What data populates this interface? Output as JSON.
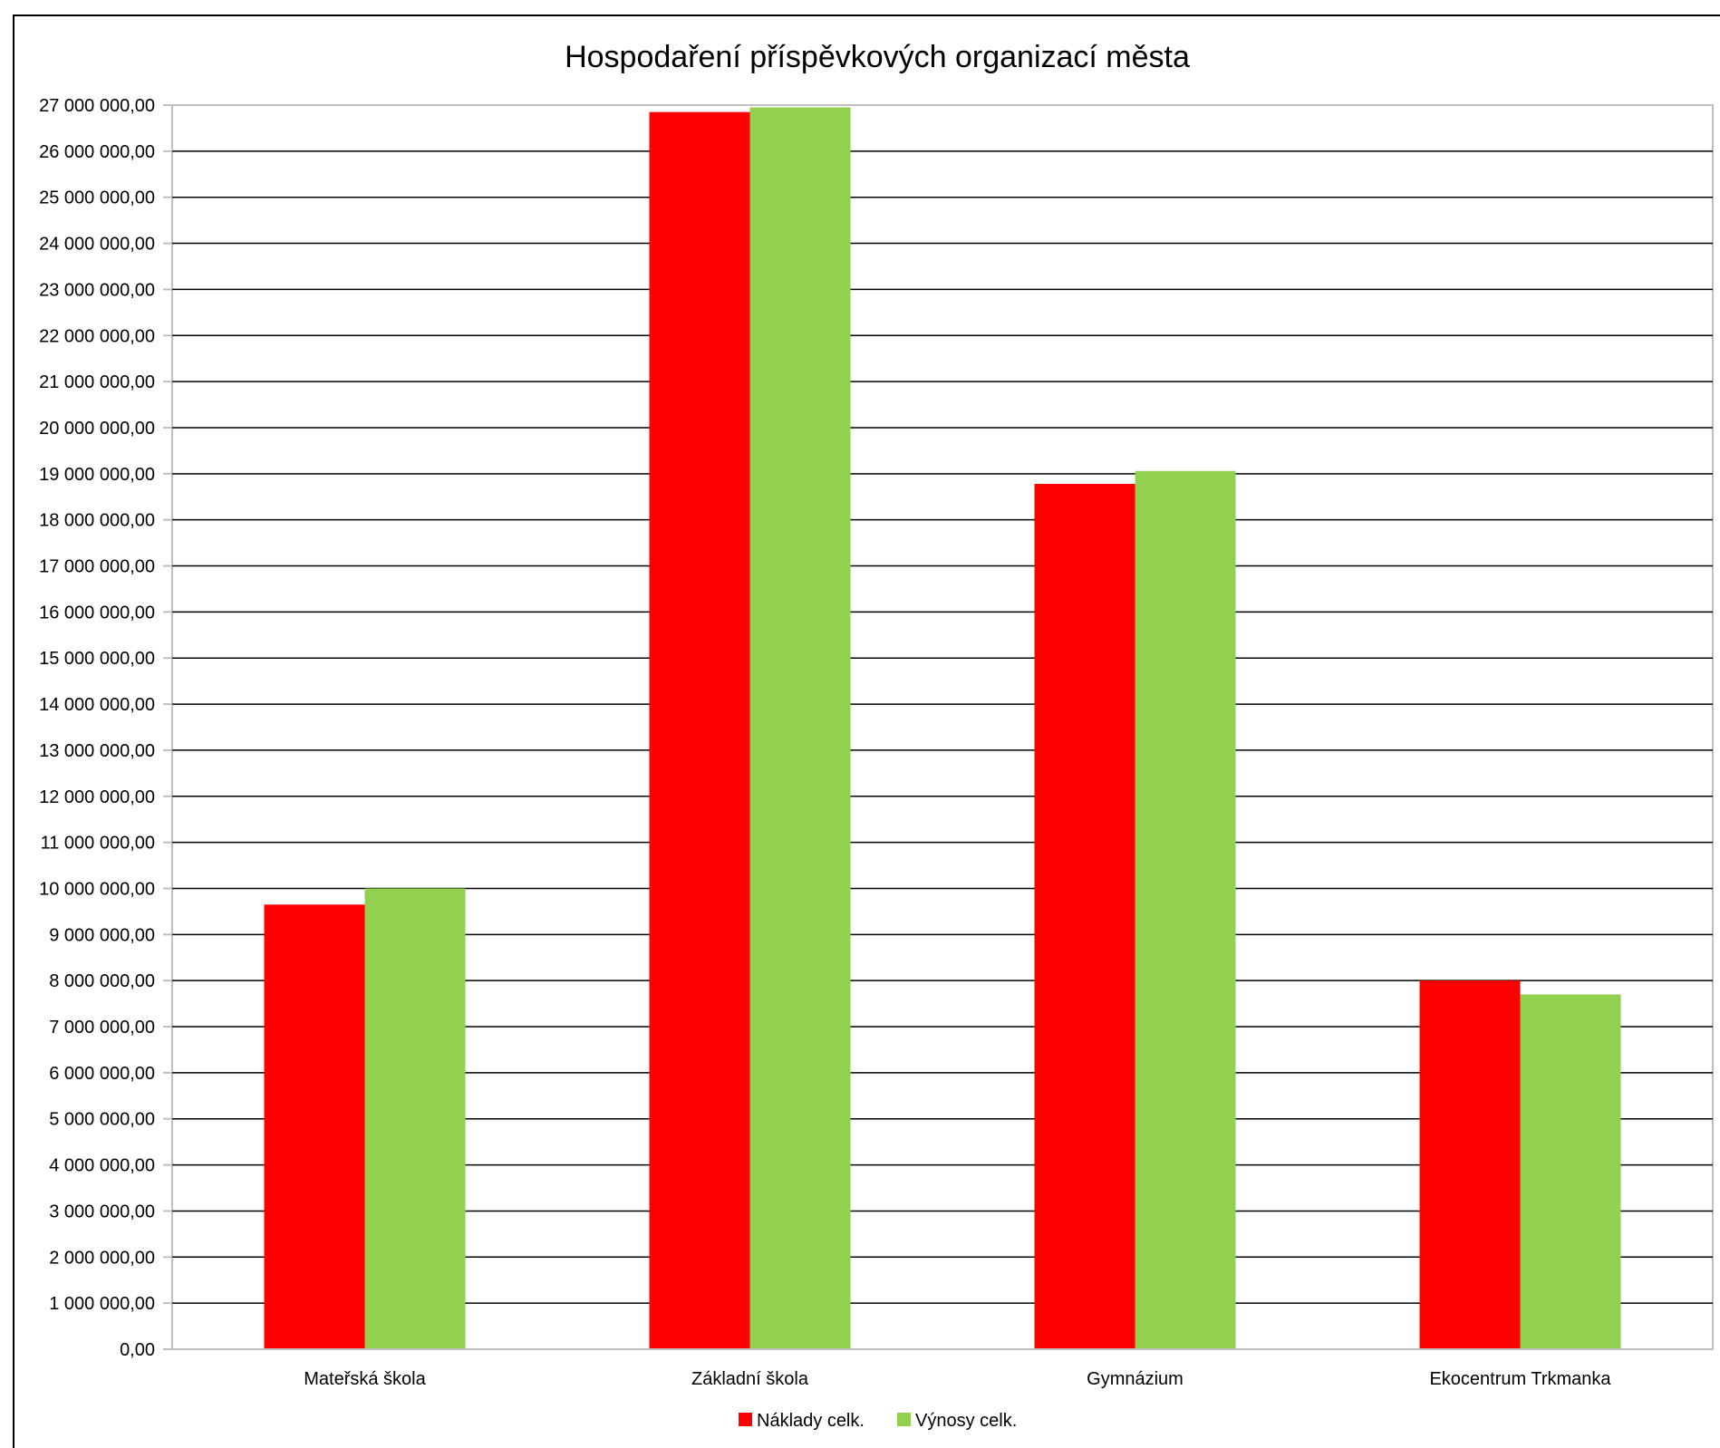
{
  "chart_data": {
    "type": "bar",
    "title": "Hospodaření příspěvkových organizací města",
    "xlabel": "",
    "ylabel": "",
    "categories": [
      "Mateřská škola",
      "Základní škola",
      "Gymnázium",
      "Ekocentrum Trkmanka"
    ],
    "series": [
      {
        "name": "Náklady celk.",
        "color": "#ff0000",
        "values": [
          9650000,
          26850000,
          18780000,
          8000000
        ]
      },
      {
        "name": "Výnosy celk.",
        "color": "#92d050",
        "values": [
          10000000,
          26950000,
          19060000,
          7700000
        ]
      }
    ],
    "ylim": [
      0,
      27000000
    ],
    "ytick_step": 1000000,
    "ytick_labels": [
      "0,00",
      "1 000 000,00",
      "2 000 000,00",
      "3 000 000,00",
      "4 000 000,00",
      "5 000 000,00",
      "6 000 000,00",
      "7 000 000,00",
      "8 000 000,00",
      "9 000 000,00",
      "10 000 000,00",
      "11 000 000,00",
      "12 000 000,00",
      "13 000 000,00",
      "14 000 000,00",
      "15 000 000,00",
      "16 000 000,00",
      "17 000 000,00",
      "18 000 000,00",
      "19 000 000,00",
      "20 000 000,00",
      "21 000 000,00",
      "22 000 000,00",
      "23 000 000,00",
      "24 000 000,00",
      "25 000 000,00",
      "26 000 000,00",
      "27 000 000,00"
    ],
    "grid": true,
    "legend_position": "bottom"
  }
}
